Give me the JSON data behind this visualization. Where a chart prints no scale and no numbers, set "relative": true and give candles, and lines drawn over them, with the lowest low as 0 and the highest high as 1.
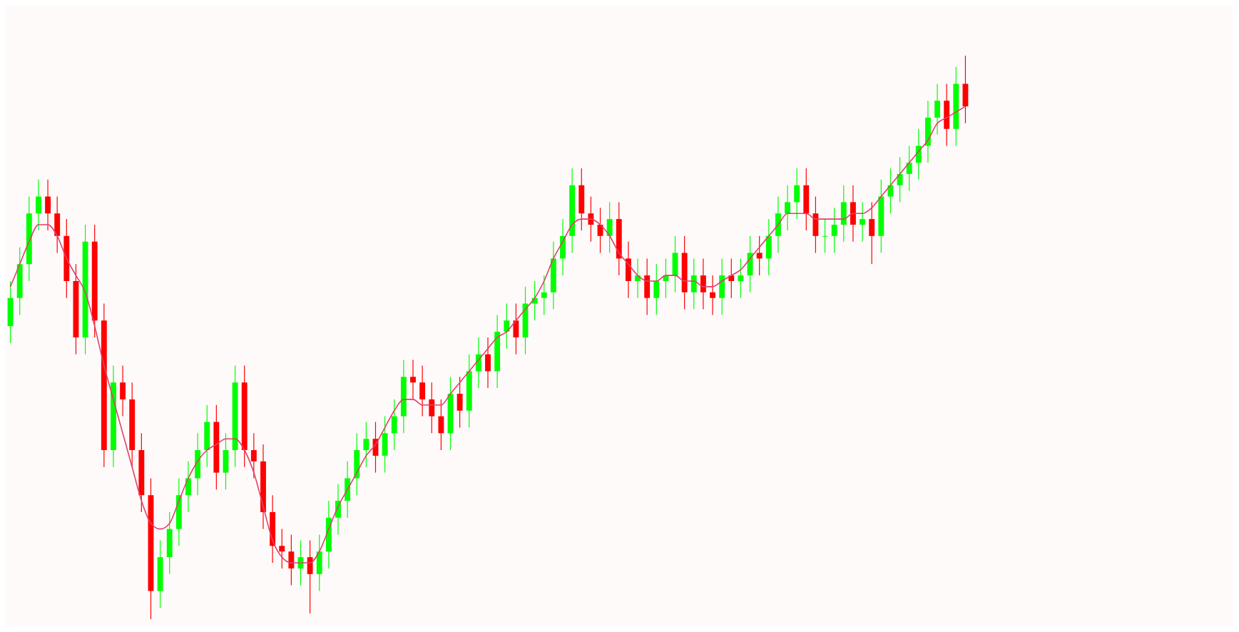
{
  "chart_data": {
    "type": "candlestick",
    "relative": true,
    "categories": [
      null,
      null,
      null,
      null,
      null,
      null,
      null,
      null,
      null,
      null,
      null,
      null,
      null,
      null,
      null,
      null,
      null,
      null,
      null,
      null,
      null,
      null,
      null,
      null,
      null,
      null,
      null,
      null,
      null,
      null,
      null,
      null,
      null,
      null,
      null,
      null,
      null,
      null,
      null,
      null,
      null,
      null,
      null,
      null,
      null,
      null,
      null,
      null,
      null,
      null,
      null,
      null,
      null,
      null,
      null,
      null,
      null,
      null,
      null,
      null,
      null,
      null,
      null,
      null,
      null,
      null,
      null,
      null,
      null,
      null,
      null,
      null,
      null,
      null,
      null,
      null,
      null,
      null,
      null,
      null,
      null,
      null,
      null,
      null,
      null,
      null,
      null,
      null,
      null,
      null,
      null,
      null,
      null,
      null,
      null,
      null,
      null,
      null,
      null,
      null,
      null,
      null,
      null
    ],
    "ohlc": [
      [
        0.52,
        0.6,
        0.49,
        0.57
      ],
      [
        0.57,
        0.66,
        0.54,
        0.63
      ],
      [
        0.63,
        0.75,
        0.6,
        0.72
      ],
      [
        0.72,
        0.78,
        0.69,
        0.75
      ],
      [
        0.75,
        0.78,
        0.69,
        0.72
      ],
      [
        0.72,
        0.75,
        0.65,
        0.68
      ],
      [
        0.68,
        0.71,
        0.57,
        0.6
      ],
      [
        0.6,
        0.63,
        0.47,
        0.5
      ],
      [
        0.5,
        0.7,
        0.47,
        0.67
      ],
      [
        0.67,
        0.7,
        0.5,
        0.53
      ],
      [
        0.53,
        0.56,
        0.27,
        0.3
      ],
      [
        0.3,
        0.45,
        0.27,
        0.42
      ],
      [
        0.42,
        0.45,
        0.36,
        0.39
      ],
      [
        0.39,
        0.42,
        0.27,
        0.3
      ],
      [
        0.3,
        0.33,
        0.19,
        0.22
      ],
      [
        0.22,
        0.25,
        0,
        0.05
      ],
      [
        0.05,
        0.14,
        0.02,
        0.11
      ],
      [
        0.11,
        0.19,
        0.08,
        0.16
      ],
      [
        0.16,
        0.25,
        0.13,
        0.22
      ],
      [
        0.22,
        0.28,
        0.19,
        0.25
      ],
      [
        0.25,
        0.33,
        0.22,
        0.3
      ],
      [
        0.3,
        0.38,
        0.27,
        0.35
      ],
      [
        0.35,
        0.38,
        0.23,
        0.26
      ],
      [
        0.26,
        0.33,
        0.23,
        0.3
      ],
      [
        0.3,
        0.45,
        0.27,
        0.42
      ],
      [
        0.42,
        0.45,
        0.27,
        0.3
      ],
      [
        0.3,
        0.33,
        0.25,
        0.28
      ],
      [
        0.28,
        0.31,
        0.16,
        0.19
      ],
      [
        0.19,
        0.22,
        0.1,
        0.13
      ],
      [
        0.13,
        0.16,
        0.09,
        0.12
      ],
      [
        0.12,
        0.15,
        0.06,
        0.09
      ],
      [
        0.09,
        0.14,
        0.06,
        0.11
      ],
      [
        0.11,
        0.14,
        0.01,
        0.08
      ],
      [
        0.08,
        0.15,
        0.05,
        0.12
      ],
      [
        0.12,
        0.21,
        0.09,
        0.18
      ],
      [
        0.18,
        0.24,
        0.15,
        0.21
      ],
      [
        0.21,
        0.28,
        0.18,
        0.25
      ],
      [
        0.25,
        0.33,
        0.22,
        0.3
      ],
      [
        0.3,
        0.35,
        0.27,
        0.32
      ],
      [
        0.32,
        0.35,
        0.26,
        0.29
      ],
      [
        0.29,
        0.36,
        0.26,
        0.33
      ],
      [
        0.33,
        0.39,
        0.3,
        0.36
      ],
      [
        0.36,
        0.46,
        0.33,
        0.43
      ],
      [
        0.43,
        0.46,
        0.39,
        0.42
      ],
      [
        0.42,
        0.45,
        0.36,
        0.39
      ],
      [
        0.39,
        0.42,
        0.33,
        0.36
      ],
      [
        0.36,
        0.39,
        0.3,
        0.33
      ],
      [
        0.33,
        0.43,
        0.3,
        0.4
      ],
      [
        0.4,
        0.43,
        0.34,
        0.37
      ],
      [
        0.37,
        0.47,
        0.34,
        0.44
      ],
      [
        0.44,
        0.5,
        0.41,
        0.47
      ],
      [
        0.47,
        0.5,
        0.41,
        0.44
      ],
      [
        0.44,
        0.54,
        0.41,
        0.51
      ],
      [
        0.51,
        0.56,
        0.48,
        0.53
      ],
      [
        0.53,
        0.56,
        0.47,
        0.5
      ],
      [
        0.5,
        0.59,
        0.47,
        0.56
      ],
      [
        0.56,
        0.6,
        0.53,
        0.57
      ],
      [
        0.57,
        0.61,
        0.54,
        0.58
      ],
      [
        0.58,
        0.67,
        0.55,
        0.64
      ],
      [
        0.64,
        0.71,
        0.61,
        0.68
      ],
      [
        0.68,
        0.8,
        0.65,
        0.77
      ],
      [
        0.77,
        0.8,
        0.69,
        0.72
      ],
      [
        0.72,
        0.75,
        0.67,
        0.7
      ],
      [
        0.7,
        0.73,
        0.65,
        0.68
      ],
      [
        0.68,
        0.74,
        0.65,
        0.71
      ],
      [
        0.71,
        0.74,
        0.61,
        0.64
      ],
      [
        0.64,
        0.67,
        0.57,
        0.6
      ],
      [
        0.6,
        0.64,
        0.57,
        0.61
      ],
      [
        0.61,
        0.64,
        0.54,
        0.57
      ],
      [
        0.57,
        0.63,
        0.54,
        0.6
      ],
      [
        0.6,
        0.64,
        0.57,
        0.61
      ],
      [
        0.61,
        0.68,
        0.58,
        0.65
      ],
      [
        0.65,
        0.68,
        0.55,
        0.58
      ],
      [
        0.58,
        0.64,
        0.55,
        0.61
      ],
      [
        0.61,
        0.64,
        0.55,
        0.58
      ],
      [
        0.58,
        0.61,
        0.54,
        0.57
      ],
      [
        0.57,
        0.64,
        0.54,
        0.61
      ],
      [
        0.61,
        0.64,
        0.57,
        0.6
      ],
      [
        0.6,
        0.64,
        0.57,
        0.61
      ],
      [
        0.61,
        0.68,
        0.58,
        0.65
      ],
      [
        0.65,
        0.68,
        0.61,
        0.64
      ],
      [
        0.64,
        0.71,
        0.61,
        0.68
      ],
      [
        0.68,
        0.75,
        0.65,
        0.72
      ],
      [
        0.72,
        0.77,
        0.69,
        0.74
      ],
      [
        0.74,
        0.8,
        0.71,
        0.77
      ],
      [
        0.77,
        0.8,
        0.69,
        0.72
      ],
      [
        0.72,
        0.75,
        0.65,
        0.68
      ],
      [
        0.68,
        0.71,
        0.65,
        0.68
      ],
      [
        0.68,
        0.73,
        0.65,
        0.7
      ],
      [
        0.7,
        0.77,
        0.67,
        0.74
      ],
      [
        0.74,
        0.77,
        0.67,
        0.7
      ],
      [
        0.7,
        0.74,
        0.67,
        0.71
      ],
      [
        0.71,
        0.74,
        0.63,
        0.68
      ],
      [
        0.68,
        0.78,
        0.65,
        0.75
      ],
      [
        0.75,
        0.8,
        0.72,
        0.77
      ],
      [
        0.77,
        0.82,
        0.74,
        0.79
      ],
      [
        0.79,
        0.84,
        0.76,
        0.81
      ],
      [
        0.81,
        0.87,
        0.78,
        0.84
      ],
      [
        0.84,
        0.92,
        0.81,
        0.89
      ],
      [
        0.89,
        0.95,
        0.86,
        0.92
      ],
      [
        0.92,
        0.95,
        0.84,
        0.87
      ],
      [
        0.87,
        0.98,
        0.84,
        0.95
      ],
      [
        0.95,
        1,
        0.88,
        0.91
      ]
    ],
    "colors": [
      "#00ff00",
      "#00ff00",
      "#00ff00",
      "#00ff00",
      "#ff0000",
      "#ff0000",
      "#ff0000",
      "#ff0000",
      "#00ff00",
      "#ff0000",
      "#ff0000",
      "#00ff00",
      "#ff0000",
      "#ff0000",
      "#ff0000",
      "#ff0000",
      "#00ff00",
      "#00ff00",
      "#00ff00",
      "#00ff00",
      "#00ff00",
      "#00ff00",
      "#ff0000",
      "#00ff00",
      "#00ff00",
      "#ff0000",
      "#ff0000",
      "#ff0000",
      "#ff0000",
      "#ff0000",
      "#ff0000",
      "#00ff00",
      "#ff0000",
      "#00ff00",
      "#00ff00",
      "#00ff00",
      "#00ff00",
      "#00ff00",
      "#00ff00",
      "#ff0000",
      "#00ff00",
      "#00ff00",
      "#00ff00",
      "#ff0000",
      "#ff0000",
      "#ff0000",
      "#ff0000",
      "#00ff00",
      "#ff0000",
      "#00ff00",
      "#00ff00",
      "#ff0000",
      "#00ff00",
      "#00ff00",
      "#ff0000",
      "#00ff00",
      "#00ff00",
      "#00ff00",
      "#00ff00",
      "#00ff00",
      "#00ff00",
      "#ff0000",
      "#ff0000",
      "#ff0000",
      "#00ff00",
      "#ff0000",
      "#ff0000",
      "#00ff00",
      "#ff0000",
      "#00ff00",
      "#00ff00",
      "#00ff00",
      "#ff0000",
      "#00ff00",
      "#ff0000",
      "#ff0000",
      "#00ff00",
      "#ff0000",
      "#00ff00",
      "#00ff00",
      "#ff0000",
      "#00ff00",
      "#00ff00",
      "#00ff00",
      "#00ff00",
      "#ff0000",
      "#ff0000",
      "#00ff00",
      "#00ff00",
      "#00ff00",
      "#ff0000",
      "#00ff00",
      "#ff0000",
      "#00ff00",
      "#00ff00",
      "#00ff00",
      "#00ff00",
      "#00ff00",
      "#00ff00",
      "#00ff00",
      "#ff0000",
      "#00ff00",
      "#ff0000"
    ],
    "series": [
      {
        "type": "line",
        "color": "#e0406e",
        "values": [
          0.59,
          0.63,
          0.67,
          0.7,
          0.7,
          0.68,
          0.64,
          0.61,
          0.58,
          0.52,
          0.45,
          0.39,
          0.33,
          0.27,
          0.21,
          0.17,
          0.16,
          0.17,
          0.21,
          0.25,
          0.28,
          0.3,
          0.31,
          0.32,
          0.32,
          0.3,
          0.26,
          0.2,
          0.14,
          0.11,
          0.1,
          0.1,
          0.1,
          0.12,
          0.16,
          0.2,
          0.23,
          0.26,
          0.29,
          0.31,
          0.34,
          0.37,
          0.39,
          0.39,
          0.38,
          0.38,
          0.38,
          0.4,
          0.42,
          0.44,
          0.46,
          0.48,
          0.5,
          0.51,
          0.53,
          0.55,
          0.57,
          0.6,
          0.64,
          0.67,
          0.7,
          0.71,
          0.71,
          0.7,
          0.68,
          0.65,
          0.63,
          0.61,
          0.6,
          0.6,
          0.61,
          0.61,
          0.6,
          0.6,
          0.59,
          0.59,
          0.6,
          0.61,
          0.62,
          0.64,
          0.66,
          0.68,
          0.7,
          0.72,
          0.72,
          0.72,
          0.71,
          0.71,
          0.71,
          0.71,
          0.72,
          0.72,
          0.73,
          0.75,
          0.77,
          0.79,
          0.81,
          0.83,
          0.85,
          0.88,
          0.89,
          0.9,
          0.91
        ]
      }
    ]
  }
}
